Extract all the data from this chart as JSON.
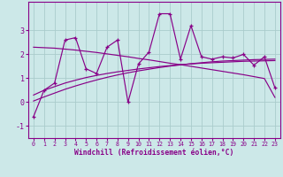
{
  "xlabel": "Windchill (Refroidissement éolien,°C)",
  "background_color": "#cce8e8",
  "line_color": "#880088",
  "grid_color": "#aacccc",
  "x_values": [
    0,
    1,
    2,
    3,
    4,
    5,
    6,
    7,
    8,
    9,
    10,
    11,
    12,
    13,
    14,
    15,
    16,
    17,
    18,
    19,
    20,
    21,
    22,
    23
  ],
  "y_main": [
    -0.6,
    0.5,
    0.8,
    2.6,
    2.7,
    1.4,
    1.2,
    2.3,
    2.6,
    0.0,
    1.6,
    2.1,
    3.7,
    3.7,
    1.8,
    3.2,
    1.9,
    1.8,
    1.9,
    1.85,
    2.0,
    1.55,
    1.9,
    0.6
  ],
  "y_trend_up1": [
    0.3,
    0.5,
    0.65,
    0.8,
    0.92,
    1.03,
    1.12,
    1.2,
    1.27,
    1.33,
    1.39,
    1.44,
    1.49,
    1.53,
    1.57,
    1.6,
    1.63,
    1.65,
    1.67,
    1.69,
    1.71,
    1.72,
    1.73,
    1.74
  ],
  "y_trend_up2": [
    0.05,
    0.22,
    0.38,
    0.54,
    0.68,
    0.81,
    0.93,
    1.04,
    1.14,
    1.23,
    1.31,
    1.38,
    1.45,
    1.51,
    1.56,
    1.61,
    1.65,
    1.69,
    1.72,
    1.74,
    1.76,
    1.78,
    1.79,
    1.8
  ],
  "y_trend_down": [
    2.3,
    2.28,
    2.26,
    2.22,
    2.18,
    2.13,
    2.08,
    2.02,
    1.96,
    1.9,
    1.83,
    1.77,
    1.7,
    1.63,
    1.57,
    1.5,
    1.43,
    1.36,
    1.29,
    1.22,
    1.15,
    1.07,
    0.99,
    0.2
  ],
  "ylim": [
    -1.5,
    4.2
  ],
  "xlim": [
    -0.5,
    23.5
  ],
  "yticks": [
    -1,
    0,
    1,
    2,
    3
  ],
  "xticks": [
    0,
    1,
    2,
    3,
    4,
    5,
    6,
    7,
    8,
    9,
    10,
    11,
    12,
    13,
    14,
    15,
    16,
    17,
    18,
    19,
    20,
    21,
    22,
    23
  ]
}
